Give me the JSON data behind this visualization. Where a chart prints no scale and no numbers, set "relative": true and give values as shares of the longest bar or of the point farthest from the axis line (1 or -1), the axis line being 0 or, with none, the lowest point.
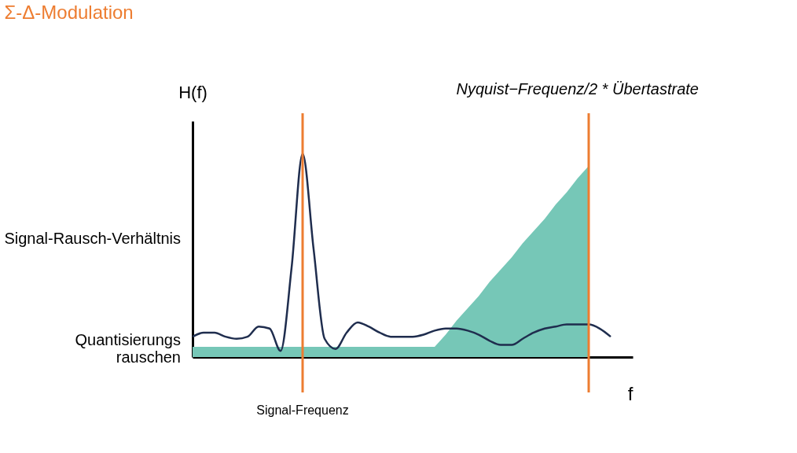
{
  "chart_data": {
    "type": "line",
    "title": "Σ-Δ-Modulation",
    "xlabel": "f",
    "ylabel": "H(f)",
    "relative": true,
    "grid": false,
    "categories": [
      null,
      null,
      null,
      null,
      null,
      null,
      null,
      null,
      null,
      null,
      null,
      null,
      null,
      null,
      null,
      null,
      null,
      null,
      null,
      null,
      null,
      null,
      null,
      null,
      null,
      null,
      null,
      null,
      null,
      null,
      null,
      null,
      null,
      null,
      null,
      null,
      null,
      null,
      null,
      null,
      null
    ],
    "series": [
      {
        "type": "area",
        "color": "#76c7b7",
        "values": [
          0.05,
          0.05,
          0.05,
          0.05,
          0.05,
          0.05,
          0.05,
          0.05,
          0.05,
          0.05,
          0.05,
          0.05,
          0.05,
          0.05,
          0.05,
          0.05,
          0.05,
          0.05,
          0.05,
          0.05,
          0.05,
          0.05,
          0.05,
          0.11,
          0.18,
          0.24,
          0.3,
          0.37,
          0.43,
          0.49,
          0.56,
          0.62,
          0.68,
          0.75,
          0.81,
          0.88,
          0.94,
          null,
          null,
          null,
          null
        ]
      },
      {
        "color": "#1f2d4e",
        "values": [
          0.1,
          0.12,
          0.12,
          0.1,
          0.09,
          0.1,
          0.15,
          0.14,
          0.03,
          0.44,
          1.0,
          0.53,
          0.09,
          0.04,
          0.12,
          0.17,
          0.15,
          0.12,
          0.1,
          0.1,
          0.1,
          0.11,
          0.13,
          0.14,
          0.14,
          0.13,
          0.11,
          0.08,
          0.06,
          0.06,
          0.09,
          0.12,
          0.14,
          0.15,
          0.16,
          0.16,
          0.16,
          0.14,
          0.1,
          null,
          null
        ]
      }
    ],
    "annotations": [
      "Signal-Rausch-Verhältnis",
      "Quantisierungs rauschen",
      "Signal-Frequenz",
      "Nyquist−Frequenz/2 * Übertastrate"
    ]
  }
}
